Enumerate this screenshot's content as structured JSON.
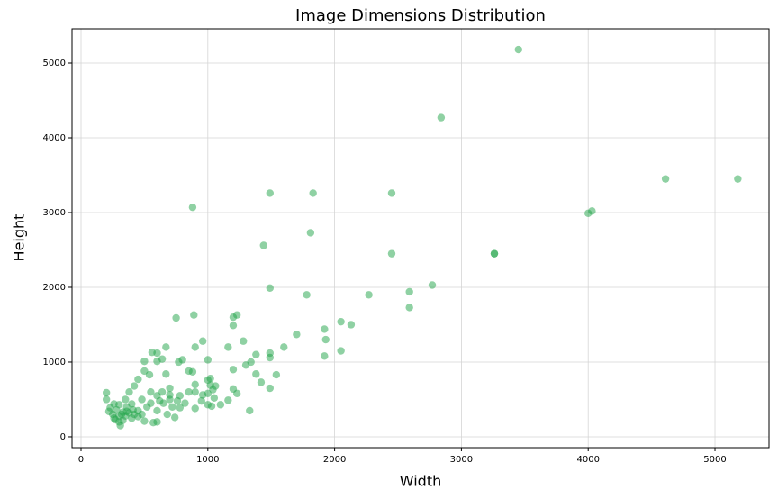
{
  "chart_data": {
    "type": "scatter",
    "title": "Image Dimensions Distribution",
    "x_label": "Width",
    "y_label": "Height",
    "color": "#1fa347",
    "opacity": 0.5,
    "grid": true,
    "xlim": [
      -71,
      5426
    ],
    "ylim": [
      -145,
      5458
    ],
    "xticks": [
      0,
      1000,
      2000,
      3000,
      4000,
      5000
    ],
    "yticks": [
      0,
      1000,
      2000,
      3000,
      4000,
      5000
    ],
    "x": [
      3450,
      2840,
      4610,
      5180,
      4000,
      4030,
      3260,
      3260,
      880,
      1490,
      1830,
      2450,
      1440,
      1810,
      2450,
      2770,
      1490,
      1780,
      2270,
      2590,
      2590,
      2050,
      2130,
      1920,
      1930,
      2050,
      1920,
      1700,
      1600,
      1490,
      1490,
      1380,
      1540,
      1490,
      1420,
      1380,
      1300,
      1340,
      1280,
      1230,
      1200,
      1200,
      1160,
      1200,
      1200,
      1230,
      1160,
      1330,
      960,
      890,
      750,
      670,
      900,
      1000,
      1040,
      1060,
      1000,
      1000,
      1000,
      1030,
      960,
      900,
      900,
      880,
      850,
      770,
      800,
      780,
      780,
      740,
      670,
      600,
      600,
      640,
      560,
      500,
      500,
      540,
      450,
      420,
      380,
      350,
      300,
      280,
      250,
      220,
      200,
      200,
      260,
      300,
      310,
      330,
      350,
      380,
      400,
      450,
      480,
      520,
      550,
      600,
      650,
      700,
      720,
      680,
      600,
      570,
      500,
      450,
      420,
      360,
      320,
      270,
      230,
      260,
      600,
      640,
      700,
      550,
      480,
      400,
      900,
      820,
      850,
      950,
      1050,
      1100,
      1020,
      1020,
      360,
      410,
      300,
      330,
      700,
      760,
      620
    ],
    "values": [
      5180,
      4270,
      3450,
      3450,
      2990,
      3020,
      2450,
      2450,
      3070,
      3260,
      3260,
      3260,
      2560,
      2730,
      2450,
      2030,
      1990,
      1900,
      1900,
      1940,
      1730,
      1540,
      1500,
      1440,
      1300,
      1150,
      1080,
      1370,
      1200,
      1120,
      1060,
      1100,
      830,
      650,
      730,
      840,
      960,
      1000,
      1280,
      1630,
      1600,
      1490,
      1200,
      900,
      640,
      580,
      490,
      350,
      1280,
      1630,
      1590,
      1200,
      1200,
      1030,
      630,
      680,
      760,
      580,
      430,
      410,
      560,
      700,
      600,
      870,
      880,
      1000,
      1030,
      550,
      390,
      260,
      840,
      1010,
      1120,
      1040,
      1130,
      1010,
      880,
      830,
      770,
      680,
      600,
      500,
      430,
      360,
      300,
      340,
      500,
      590,
      250,
      200,
      150,
      220,
      280,
      320,
      250,
      350,
      300,
      400,
      450,
      350,
      450,
      500,
      400,
      300,
      200,
      190,
      210,
      270,
      300,
      400,
      300,
      230,
      390,
      440,
      550,
      600,
      560,
      600,
      500,
      440,
      380,
      450,
      600,
      480,
      520,
      430,
      690,
      780,
      340,
      360,
      280,
      330,
      650,
      480,
      480
    ]
  }
}
